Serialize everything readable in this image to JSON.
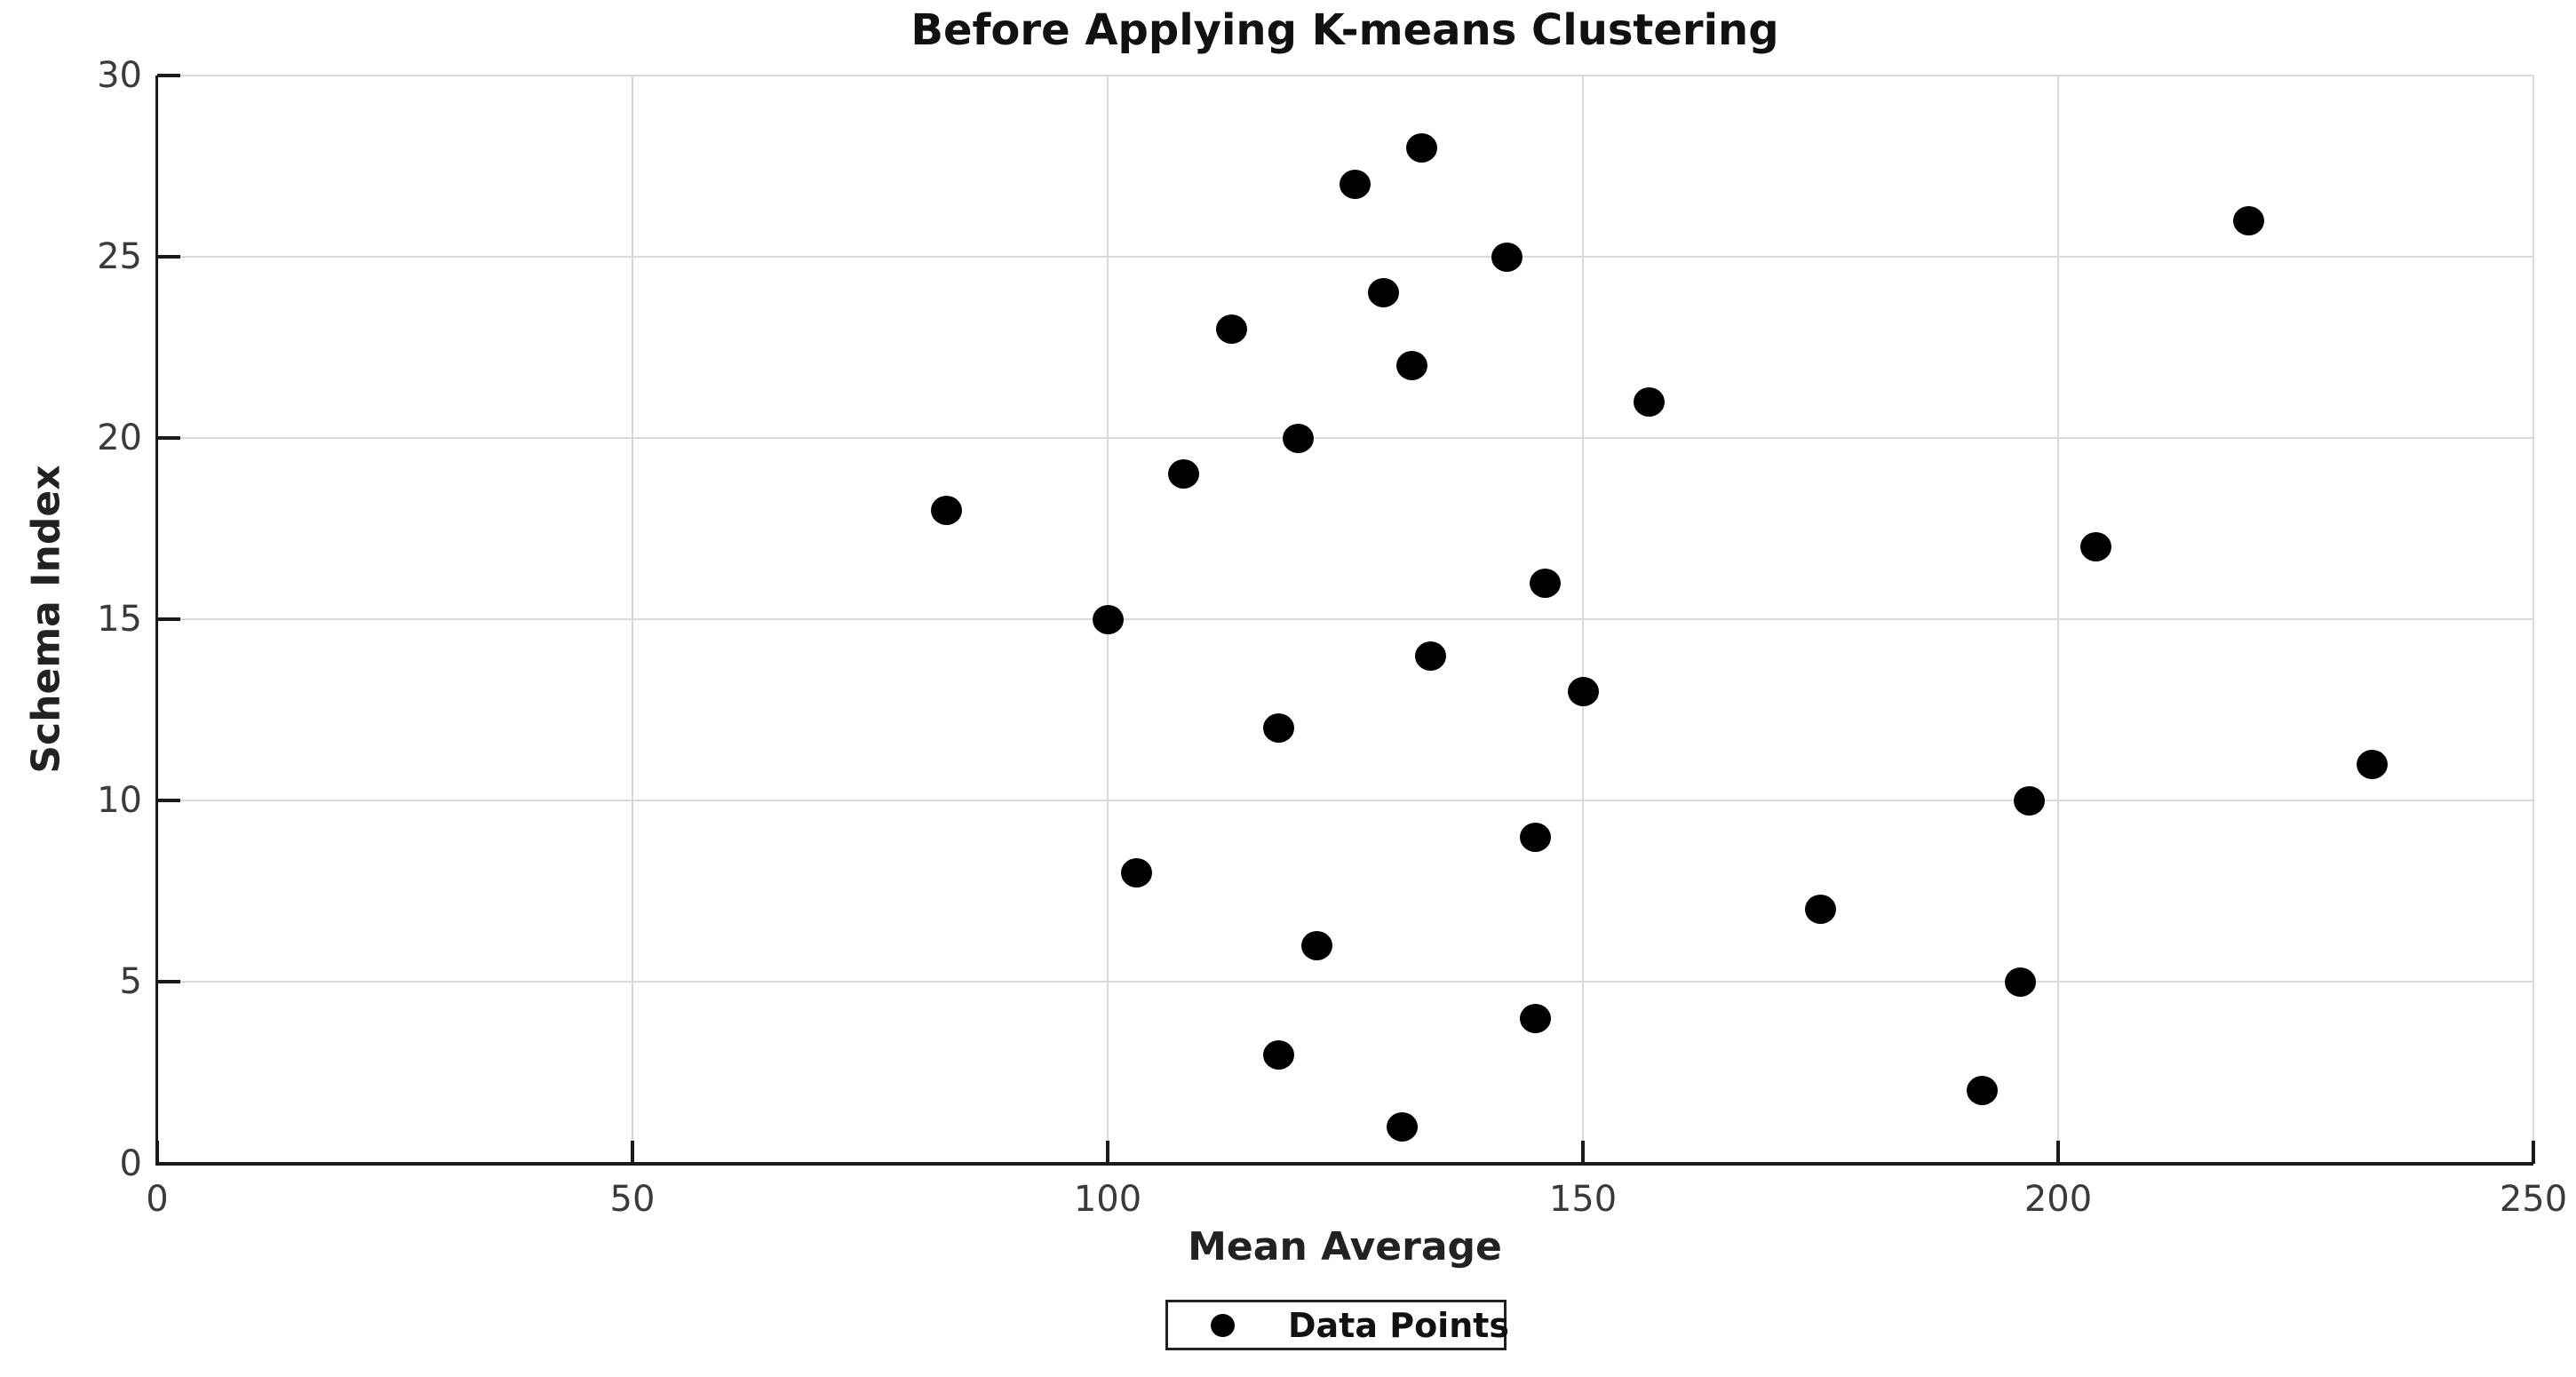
{
  "chart_data": {
    "type": "scatter",
    "title": "Before Applying K-means Clustering",
    "xlabel": "Mean Average",
    "ylabel": "Schema Index",
    "xlim": [
      0,
      250
    ],
    "ylim": [
      0,
      30
    ],
    "xticks": [
      0,
      50,
      100,
      150,
      200,
      250
    ],
    "yticks": [
      0,
      5,
      10,
      15,
      20,
      25,
      30
    ],
    "grid": true,
    "legend_position": "bottom-center",
    "series": [
      {
        "name": "Data Points",
        "marker": "filled-circle",
        "color": "#000000",
        "points": [
          [
            131,
            1
          ],
          [
            192,
            2
          ],
          [
            118,
            3
          ],
          [
            145,
            4
          ],
          [
            196,
            5
          ],
          [
            122,
            6
          ],
          [
            175,
            7
          ],
          [
            103,
            8
          ],
          [
            145,
            9
          ],
          [
            197,
            10
          ],
          [
            233,
            11
          ],
          [
            118,
            12
          ],
          [
            150,
            13
          ],
          [
            134,
            14
          ],
          [
            100,
            15
          ],
          [
            146,
            16
          ],
          [
            204,
            17
          ],
          [
            83,
            18
          ],
          [
            108,
            19
          ],
          [
            120,
            20
          ],
          [
            157,
            21
          ],
          [
            132,
            22
          ],
          [
            113,
            23
          ],
          [
            129,
            24
          ],
          [
            142,
            25
          ],
          [
            220,
            26
          ],
          [
            126,
            27
          ],
          [
            133,
            28
          ]
        ]
      }
    ]
  },
  "legend": {
    "entries": [
      {
        "label": "Data Points",
        "marker_icon": "filled-circle-icon",
        "color": "#000000"
      }
    ]
  },
  "colors": {
    "background": "#ffffff",
    "grid": "#d9d9d9",
    "spine": "#1a1a1a",
    "title_text": "#111111",
    "tick_text": "#3a3a3a"
  }
}
